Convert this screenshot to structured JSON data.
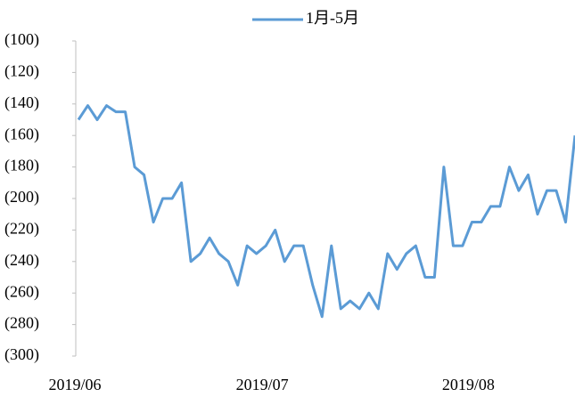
{
  "chart_data": {
    "type": "line",
    "categories": [
      "2019/06",
      null,
      null,
      null,
      null,
      null,
      null,
      null,
      null,
      null,
      null,
      null,
      null,
      null,
      null,
      null,
      null,
      null,
      null,
      null,
      "2019/07",
      null,
      null,
      null,
      null,
      null,
      null,
      null,
      null,
      null,
      null,
      null,
      null,
      null,
      null,
      null,
      null,
      null,
      null,
      null,
      null,
      null,
      "2019/08",
      null,
      null,
      null,
      null,
      null,
      null,
      null,
      null,
      null,
      null,
      null
    ],
    "series": [
      {
        "name": "1月-5月",
        "color": "#5b9bd5",
        "values": [
          -150,
          -141,
          -150,
          -141,
          -145,
          -145,
          -180,
          -185,
          -215,
          -200,
          -200,
          -190,
          -240,
          -235,
          -225,
          -235,
          -240,
          -255,
          -230,
          -235,
          -230,
          -220,
          -240,
          -230,
          -230,
          -255,
          -275,
          -230,
          -270,
          -265,
          -270,
          -260,
          -270,
          -235,
          -245,
          -235,
          -230,
          -250,
          -250,
          -180,
          -230,
          -230,
          -215,
          -215,
          -205,
          -205,
          -180,
          -195,
          -185,
          -210,
          -195,
          -195,
          -215,
          -160
        ]
      }
    ],
    "ylim": [
      -300,
      -100
    ],
    "yticks": [
      {
        "value": -100,
        "label": "(100)"
      },
      {
        "value": -120,
        "label": "(120)"
      },
      {
        "value": -140,
        "label": "(140)"
      },
      {
        "value": -160,
        "label": "(160)"
      },
      {
        "value": -180,
        "label": "(180)"
      },
      {
        "value": -200,
        "label": "(200)"
      },
      {
        "value": -220,
        "label": "(220)"
      },
      {
        "value": -240,
        "label": "(240)"
      },
      {
        "value": -260,
        "label": "(260)"
      },
      {
        "value": -280,
        "label": "(280)"
      },
      {
        "value": -300,
        "label": "(300)"
      }
    ],
    "legend": "top"
  }
}
